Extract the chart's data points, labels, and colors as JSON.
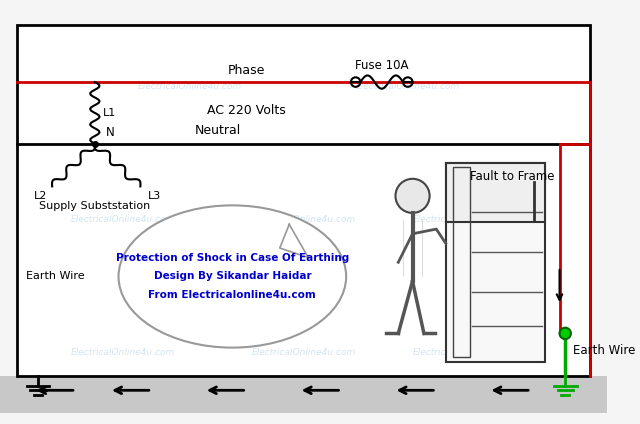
{
  "bg_color": "#f5f5f5",
  "diagram_bg": "#ffffff",
  "border_color": "#000000",
  "phase_color": "#cc0000",
  "neutral_color": "#000000",
  "earth_color": "#00aa00",
  "fault_color": "#cc0000",
  "watermark_color": "#c5dff0",
  "title_line1": "Protection of Shock in Case Of Earthing",
  "title_line2": "Design By Sikandar Haidar",
  "title_line3": "From Electricalonline4u.com",
  "watermark_text": "ElectricalOnline4u.com",
  "phase_label": "Phase",
  "neutral_label": "Neutral",
  "fuse_label": "Fuse 10A",
  "ac_label": "AC 220 Volts",
  "n_label": "N",
  "l1_label": "L1",
  "l2_label": "L2",
  "l3_label": "L3",
  "supply_label": "Supply Subststation",
  "earth_wire_left": "Earth Wire",
  "earth_wire_right": "Earth Wire",
  "fault_label": "Fault to Frame",
  "text_color": "#0000aa",
  "bottom_band_color": "#c8c8c8",
  "note_color": "#0000cc"
}
